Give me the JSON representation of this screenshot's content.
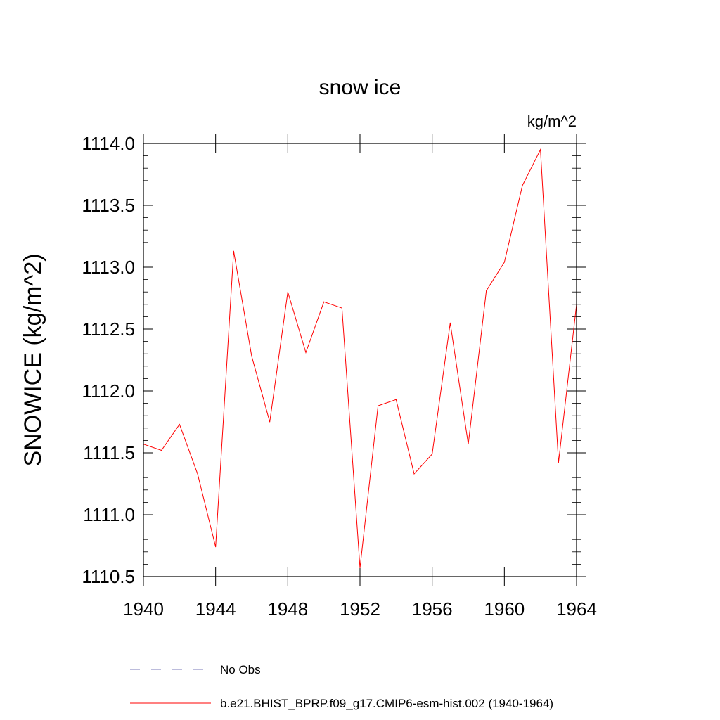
{
  "chart_data": {
    "type": "line",
    "title": "snow ice",
    "units_label": "kg/m^2",
    "ylabel": "SNOWICE  (kg/m^2)",
    "xlabel": "",
    "xlim": [
      1940,
      1964
    ],
    "ylim": [
      1110.5,
      1114.0
    ],
    "x_ticks": [
      1940,
      1944,
      1948,
      1952,
      1956,
      1960,
      1964
    ],
    "y_ticks": [
      1110.5,
      1111.0,
      1111.5,
      1112.0,
      1112.5,
      1113.0,
      1113.5,
      1114.0
    ],
    "y_tick_labels": [
      "1110.5",
      "1111.0",
      "1111.5",
      "1112.0",
      "1112.5",
      "1113.0",
      "1113.5",
      "1114.0"
    ],
    "grid": false,
    "legend_placement": "bottom",
    "series": [
      {
        "name": "b.e21.BHIST_BPRP.f09_g17.CMIP6-esm-hist.002 (1940-1964)",
        "color": "#ff0000",
        "style": "solid",
        "x": [
          1940,
          1941,
          1942,
          1943,
          1944,
          1945,
          1946,
          1947,
          1948,
          1949,
          1950,
          1951,
          1952,
          1953,
          1954,
          1955,
          1956,
          1957,
          1958,
          1959,
          1960,
          1961,
          1962,
          1963,
          1964
        ],
        "y": [
          1111.57,
          1111.52,
          1111.73,
          1111.33,
          1110.74,
          1113.13,
          1112.28,
          1111.75,
          1112.8,
          1112.31,
          1112.72,
          1112.67,
          1110.57,
          1111.88,
          1111.93,
          1111.33,
          1111.49,
          1112.55,
          1111.57,
          1112.81,
          1113.04,
          1113.66,
          1113.95,
          1111.42,
          1112.7
        ]
      }
    ],
    "legend": [
      {
        "label": "No Obs",
        "color": "#7a7ab8",
        "style": "dashed"
      },
      {
        "label": "b.e21.BHIST_BPRP.f09_g17.CMIP6-esm-hist.002 (1940-1964)",
        "color": "#ff0000",
        "style": "solid"
      }
    ]
  }
}
